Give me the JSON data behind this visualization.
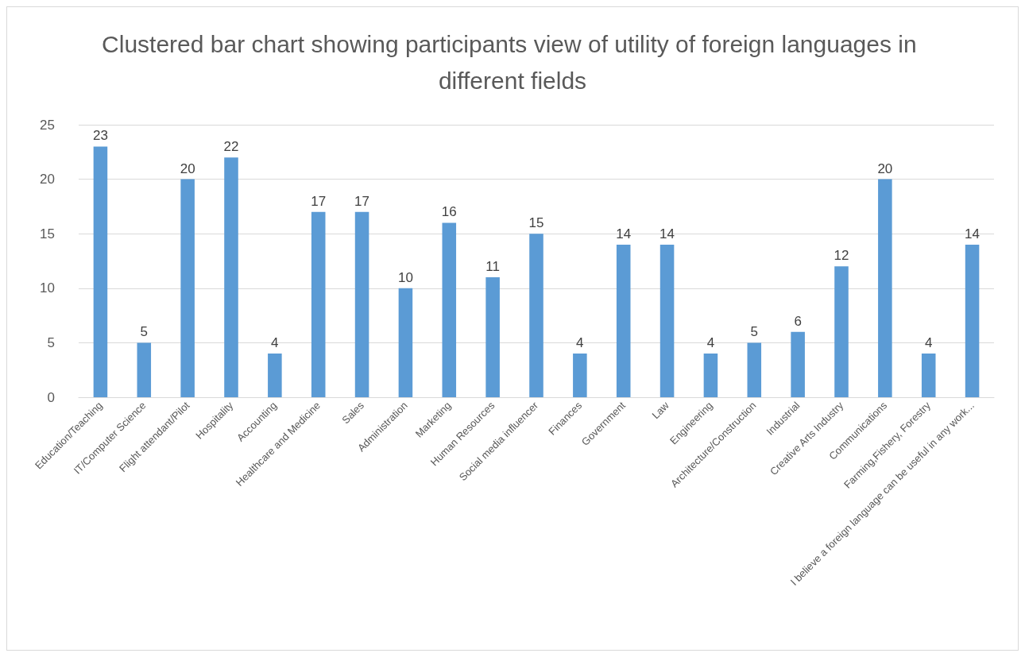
{
  "chart_data": {
    "type": "bar",
    "title": "Clustered bar chart showing participants view of utility of foreign languages in different fields",
    "categories": [
      "Education/Teaching",
      "IT/Computer Science",
      "Flight attendant/Pilot",
      "Hospitality",
      "Accounting",
      "Healthcare and Medicine",
      "Sales",
      "Administration",
      "Marketing",
      "Human Resources",
      "Social media influencer",
      "Finances",
      "Government",
      "Law",
      "Engineering",
      "Architecture/Construction",
      "Industrial",
      "Creative Arts Industry",
      "Communications",
      "Farming,Fishery, Forestry",
      "I believe a foreign language can be useful in any work..."
    ],
    "values": [
      23,
      5,
      20,
      22,
      4,
      17,
      17,
      10,
      16,
      11,
      15,
      4,
      14,
      14,
      4,
      5,
      6,
      12,
      20,
      4,
      14
    ],
    "color": "#5b9bd5",
    "ylim": [
      0,
      25
    ],
    "yticks": [
      0,
      5,
      10,
      15,
      20,
      25
    ],
    "grid": "y",
    "data_labels": true
  }
}
